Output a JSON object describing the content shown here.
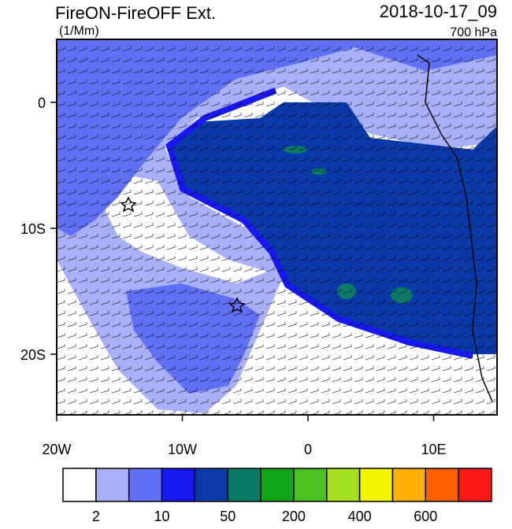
{
  "header": {
    "title": "FireON-FireOFF Ext.",
    "units": "(1/Mm)",
    "date": "2018-10-17_09",
    "level": "700 hPa"
  },
  "axes": {
    "lat_labels": [
      "0",
      "10S",
      "20S"
    ],
    "lon_labels": [
      "20W",
      "10W",
      "0",
      "10E"
    ]
  },
  "colorbar": {
    "colors": [
      "#ffffff",
      "#a8b0f8",
      "#6070f4",
      "#1818f0",
      "#0a3aa8",
      "#0a7a66",
      "#10a418",
      "#4cc020",
      "#a4e020",
      "#f4f400",
      "#ffb000",
      "#ff6000",
      "#ff1818"
    ],
    "labels": [
      "2",
      "10",
      "50",
      "200",
      "400",
      "600"
    ]
  }
}
